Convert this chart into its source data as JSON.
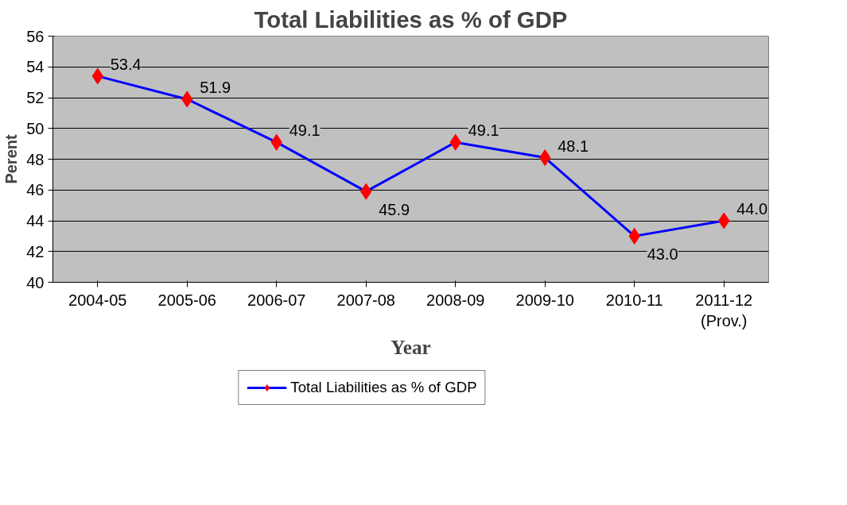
{
  "chart_data": {
    "type": "line",
    "title": "Total Liabilities as % of GDP",
    "xlabel": "Year",
    "ylabel": "Perent",
    "categories": [
      "2004-05",
      "2005-06",
      "2006-07",
      "2007-08",
      "2008-09",
      "2009-10",
      "2010-11",
      "2011-12\n(Prov.)"
    ],
    "series": [
      {
        "name": "Total Liabilities as % of GDP",
        "color": "#0000ff",
        "colors": [
          "#ff0000",
          "#ff0000",
          "#ff0000",
          "#ff0000",
          "#ff0000",
          "#ff0000",
          "#ff0000",
          "#ff0000"
        ],
        "values": [
          53.4,
          51.9,
          49.1,
          45.9,
          49.1,
          48.1,
          43.0,
          44.0
        ],
        "value_labels": [
          "53.4",
          "51.9",
          "49.1",
          "45.9",
          "49.1",
          "48.1",
          "43.0",
          "44.0"
        ]
      }
    ],
    "ylim": [
      40,
      56
    ],
    "yticks": [
      40,
      42,
      44,
      46,
      48,
      50,
      52,
      54,
      56
    ],
    "grid": "y",
    "legend": "bottom",
    "marker": "diamond",
    "line_style": "solid"
  }
}
